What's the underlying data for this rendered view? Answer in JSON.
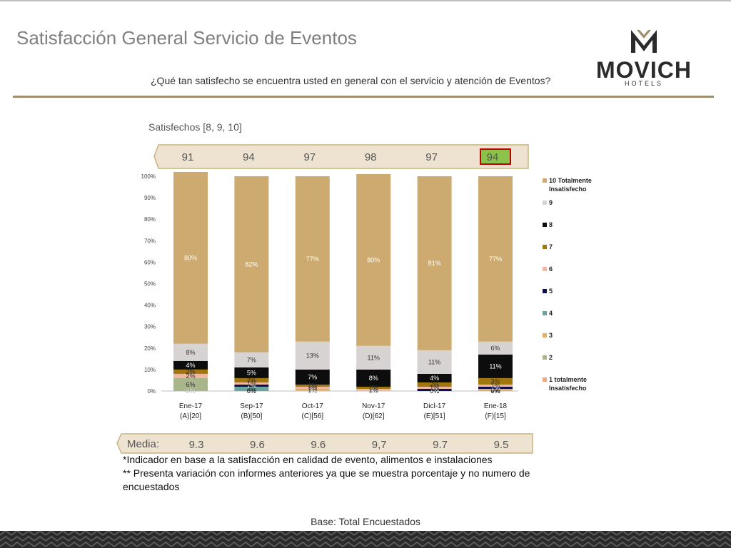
{
  "page": {
    "title": "Satisfacción General Servicio de Eventos",
    "question": "¿Qué tan satisfecho se encuentra usted en general con el servicio y atención de Eventos?",
    "subtitle": "Satisfechos [8, 9, 10]",
    "media_label": "Media:",
    "notes": [
      "*Indicador en base a la satisfacción en calidad de evento, alimentos e instalaciones",
      "** Presenta variación con informes anteriores ya que se muestra porcentaje y no numero de",
      "encuestados"
    ],
    "base": "Base: Total Encuestados"
  },
  "logo": {
    "word": "MOVICH",
    "sub": "HOTELS",
    "icon": "movich-m-logo-icon"
  },
  "colors": {
    "band": "#ede3d0",
    "band_edge": "#c9b37f",
    "highlight_fill": "#8bc34a",
    "highlight_border": "#c00000",
    "rule": "#a08f6f"
  },
  "chart_data": {
    "type": "bar",
    "stacked": true,
    "ylim": [
      0,
      100
    ],
    "yticks": [
      "0%",
      "10%",
      "20%",
      "30%",
      "40%",
      "50%",
      "60%",
      "70%",
      "80%",
      "90%",
      "100%"
    ],
    "categories": [
      [
        "Ene-17",
        "(A)[20]"
      ],
      [
        "Sep-17",
        "(B)[50]"
      ],
      [
        "Oct-17",
        "(C)[56]"
      ],
      [
        "Nov-17",
        "(D)[62]"
      ],
      [
        "Dicl-17",
        "(E)[51]"
      ],
      [
        "Ene-18",
        "(F)[15]"
      ]
    ],
    "satisfied": [
      "91",
      "94",
      "97",
      "98",
      "97",
      "94"
    ],
    "satisfied_highlight_index": 5,
    "media": [
      "9.3",
      "9.6",
      "9.6",
      "9,7",
      "9.7",
      "9.5"
    ],
    "legend_position": "right",
    "series": [
      {
        "name": "1 totalmente Insatisfecho",
        "color": "#f4a582",
        "values": [
          0,
          0,
          0,
          0,
          0,
          0
        ],
        "labels": [
          "0%",
          "0%",
          "0%",
          "0%",
          "0%",
          "0%"
        ]
      },
      {
        "name": "2",
        "color": "#a9b58a",
        "values": [
          6,
          0,
          0,
          0,
          0,
          0
        ],
        "labels": [
          "6%",
          "0%",
          "0%",
          "0%",
          "0%",
          "0%"
        ]
      },
      {
        "name": "3",
        "color": "#e3b25f",
        "values": [
          0,
          0,
          1,
          0,
          0,
          1
        ],
        "labels": [
          "0%",
          "0%",
          "1%",
          "0%",
          "0%",
          "1%"
        ]
      },
      {
        "name": "4",
        "color": "#6aa5a0",
        "values": [
          0,
          2,
          0,
          0,
          0,
          0
        ],
        "labels": [
          "0%",
          "2%",
          "0%",
          "0%",
          "0%",
          "0%"
        ]
      },
      {
        "name": "5",
        "color": "#101050",
        "values": [
          0,
          1,
          0,
          0,
          1,
          1
        ],
        "labels": [
          "0%",
          "1%",
          "0%",
          "0%",
          "1%",
          "1%"
        ]
      },
      {
        "name": "6",
        "color": "#f0b8a0",
        "values": [
          2,
          1,
          1,
          1,
          1,
          1
        ],
        "labels": [
          "2%",
          "1%",
          "1%",
          "1%",
          "1%",
          "1%"
        ]
      },
      {
        "name": "7",
        "color": "#a0760e",
        "values": [
          2,
          2,
          1,
          1,
          2,
          3
        ],
        "labels": [
          "2%",
          "2%",
          "1%",
          "1%",
          "2%",
          "3%"
        ]
      },
      {
        "name": "8",
        "color": "#0d0d0d",
        "values": [
          4,
          5,
          7,
          8,
          4,
          11
        ],
        "labels": [
          "4%",
          "5%",
          "7%",
          "8%",
          "4%",
          "11%"
        ]
      },
      {
        "name": "9",
        "color": "#d6d3d2",
        "values": [
          8,
          7,
          13,
          11,
          11,
          6
        ],
        "labels": [
          "8%",
          "7%",
          "13%",
          "11%",
          "11%",
          "6%"
        ]
      },
      {
        "name": "10 Totalmente Insatisfecho",
        "color": "#cdaa70",
        "values": [
          80,
          82,
          77,
          80,
          81,
          77
        ],
        "labels": [
          "80%",
          "82%",
          "77%",
          "80%",
          "81%",
          "77%"
        ]
      }
    ]
  }
}
